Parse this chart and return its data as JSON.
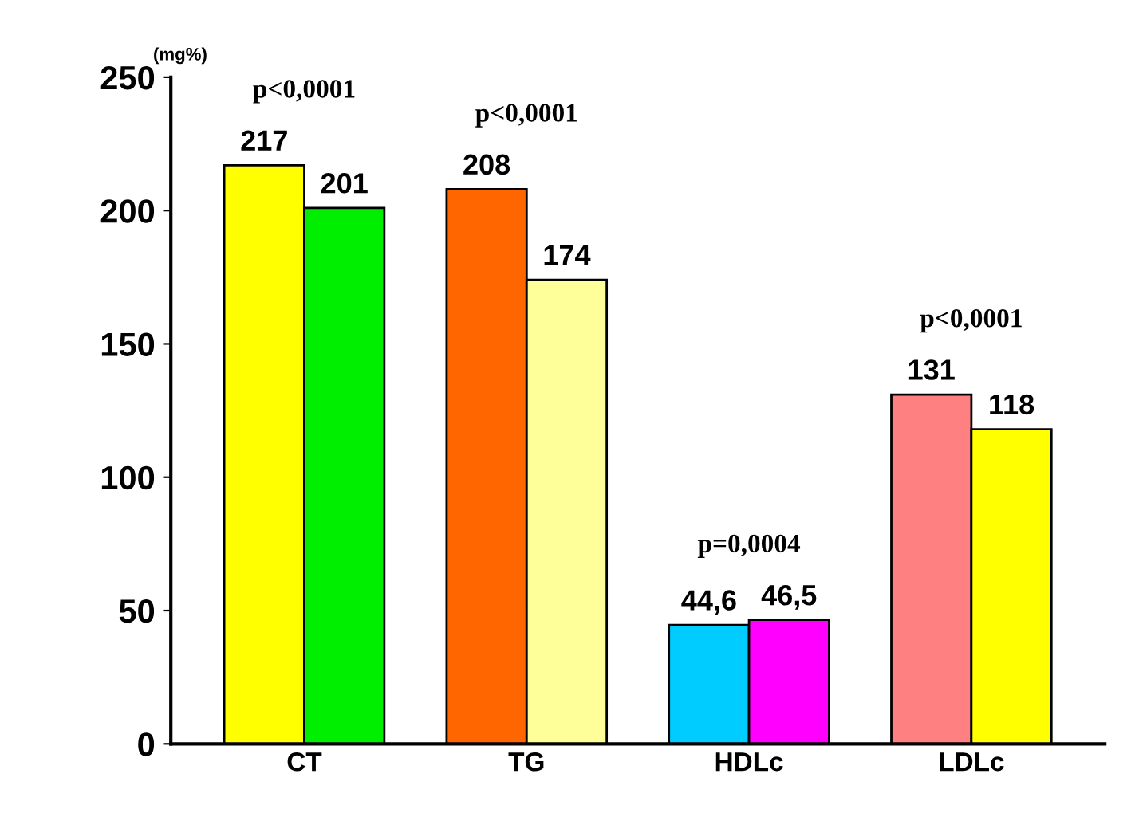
{
  "chart_data": {
    "type": "bar",
    "ylabel": "(mg%)",
    "categories": [
      "CT",
      "TG",
      "HDLc",
      "LDLc"
    ],
    "series": [
      {
        "colors": [
          "#ffff00",
          "#ff6600",
          "#00ccff",
          "#ff8080"
        ],
        "values": [
          217,
          208,
          44.6,
          131
        ],
        "value_labels": [
          "217",
          "208",
          "44,6",
          "131"
        ]
      },
      {
        "colors": [
          "#00ee00",
          "#ffff99",
          "#ff00ff",
          "#ffff00"
        ],
        "values": [
          201,
          174,
          46.5,
          118
        ],
        "value_labels": [
          "201",
          "174",
          "46,5",
          "118"
        ]
      }
    ],
    "ylim": [
      0,
      250
    ],
    "yticks": [
      0,
      50,
      100,
      150,
      200,
      250
    ],
    "grid": false,
    "annotations": [
      "p<0,0001",
      "p<0,0001",
      "p=0,0004",
      "p<0,0001"
    ]
  }
}
